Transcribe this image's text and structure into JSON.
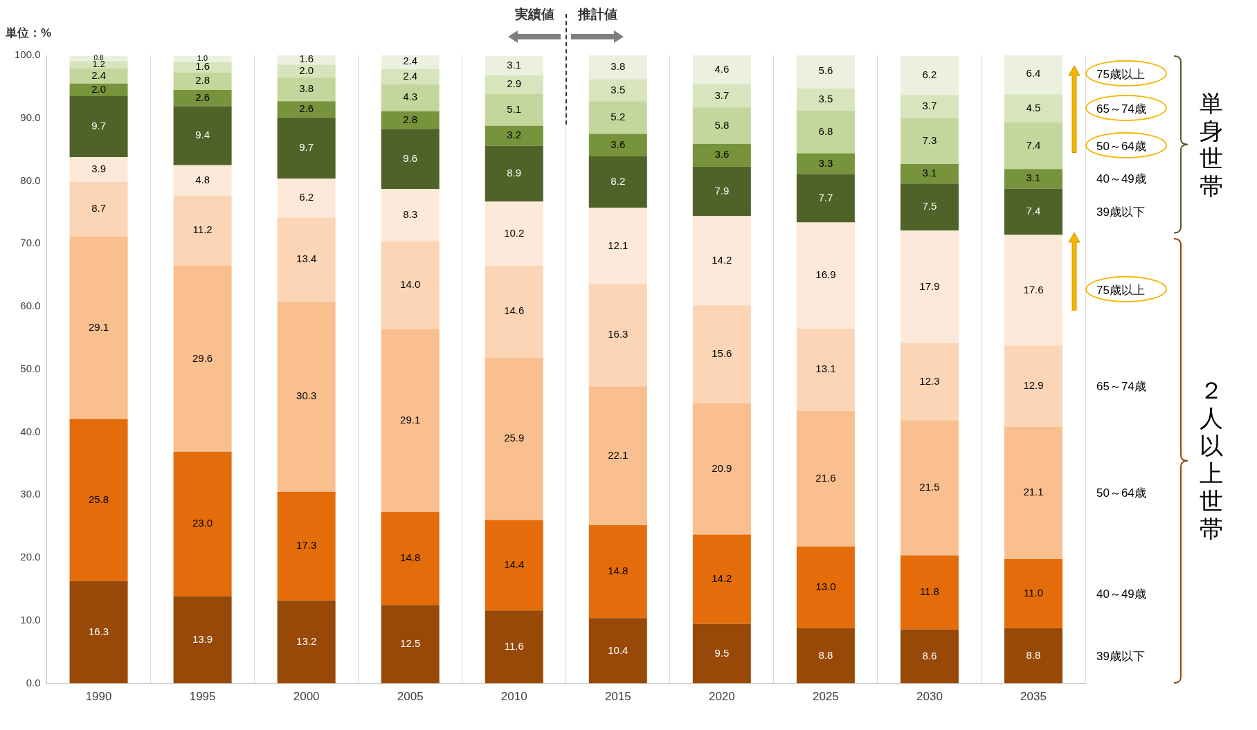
{
  "chart_data": {
    "type": "bar",
    "stacked": true,
    "ylabel": "単位：%",
    "categories": [
      "1990",
      "1995",
      "2000",
      "2005",
      "2010",
      "2015",
      "2020",
      "2025",
      "2030",
      "2035"
    ],
    "series": [
      {
        "name": "39歳以下",
        "color": "#984807",
        "values": [
          16.3,
          13.9,
          13.2,
          12.5,
          11.6,
          10.4,
          9.5,
          8.8,
          8.6,
          8.8
        ],
        "value_labels": [
          "16.3",
          "13.9",
          "13.2",
          "12.5",
          "11.6",
          "10.4",
          "9.5",
          "8.8",
          "8.6",
          "8.8"
        ]
      },
      {
        "name": "40～49歳",
        "color": "#e46c0a",
        "values": [
          25.8,
          23.0,
          17.3,
          14.8,
          14.4,
          14.8,
          14.2,
          13.0,
          11.8,
          11.0
        ],
        "value_labels": [
          "25.8",
          "23.0",
          "17.3",
          "14.8",
          "14.4",
          "14.8",
          "14.2",
          "13.0",
          "11.8",
          "11.0"
        ]
      },
      {
        "name": "50～64歳",
        "color": "#f9bf8f",
        "values": [
          29.1,
          29.6,
          30.3,
          29.1,
          25.9,
          22.1,
          20.9,
          21.6,
          21.5,
          21.1
        ],
        "value_labels": [
          "29.1",
          "29.6",
          "30.3",
          "29.1",
          "25.9",
          "22.1",
          "20.9",
          "21.6",
          "21.5",
          "21.1"
        ]
      },
      {
        "name": "65～74歳",
        "color": "#fbd5b5",
        "values": [
          8.7,
          11.2,
          13.4,
          14.0,
          14.6,
          16.3,
          15.6,
          13.1,
          12.3,
          12.9
        ],
        "value_labels": [
          "8.7",
          "11.2",
          "13.4",
          "14.0",
          "14.6",
          "16.3",
          "15.6",
          "13.1",
          "12.3",
          "12.9"
        ]
      },
      {
        "name": "75歳以上",
        "color": "#fde9d9",
        "values": [
          3.9,
          4.8,
          6.2,
          8.3,
          10.2,
          12.1,
          14.2,
          16.9,
          17.9,
          17.6
        ],
        "value_labels": [
          "3.9",
          "4.8",
          "6.2",
          "8.3",
          "10.2",
          "12.1",
          "14.2",
          "16.9",
          "17.9",
          "17.6"
        ]
      },
      {
        "name": "39歳以下",
        "color": "#4f6228",
        "values": [
          9.7,
          9.4,
          9.7,
          9.6,
          8.9,
          8.2,
          7.9,
          7.7,
          7.5,
          7.4
        ],
        "value_labels": [
          "9.7",
          "9.4",
          "9.7",
          "9.6",
          "8.9",
          "8.2",
          "7.9",
          "7.7",
          "7.5",
          "7.4"
        ]
      },
      {
        "name": "40～49歳",
        "color": "#77933c",
        "values": [
          2.0,
          2.6,
          2.6,
          2.8,
          3.2,
          3.6,
          3.6,
          3.3,
          3.1,
          3.1
        ],
        "value_labels": [
          "2.0",
          "2.6",
          "2.6",
          "2.8",
          "3.2",
          "3.6",
          "3.6",
          "3.3",
          "3.1",
          "3.1"
        ]
      },
      {
        "name": "50～64歳",
        "color": "#c3d69b",
        "values": [
          2.4,
          2.8,
          3.8,
          4.3,
          5.1,
          5.2,
          5.8,
          6.8,
          7.3,
          7.4
        ],
        "value_labels": [
          "2.4",
          "2.8",
          "3.8",
          "4.3",
          "5.1",
          "5.2",
          "5.8",
          "6.8",
          "7.3",
          "7.4"
        ]
      },
      {
        "name": "65～74歳",
        "color": "#d7e4bc",
        "values": [
          1.2,
          1.6,
          2.0,
          2.4,
          2.9,
          3.5,
          3.7,
          3.5,
          3.7,
          4.5
        ],
        "value_labels": [
          "1.2",
          "1.6",
          "2.0",
          "2.4",
          "2.9",
          "3.5",
          "3.7",
          "3.5",
          "3.7",
          "4.5"
        ]
      },
      {
        "name": "75歳以上",
        "color": "#ebf1de",
        "values": [
          0.8,
          1.0,
          1.6,
          2.4,
          3.1,
          3.8,
          4.6,
          5.6,
          6.2,
          6.4
        ],
        "value_labels": [
          "0.8",
          "1.0",
          "1.6",
          "2.4",
          "3.1",
          "3.8",
          "4.6",
          "5.6",
          "6.2",
          "6.4"
        ]
      }
    ],
    "ylim": [
      0,
      100
    ],
    "yticks": [
      {
        "value": 0,
        "label": "0.0"
      },
      {
        "value": 10,
        "label": "10.0"
      },
      {
        "value": 20,
        "label": "20.0"
      },
      {
        "value": 30,
        "label": "30.0"
      },
      {
        "value": 40,
        "label": "40.0"
      },
      {
        "value": 50,
        "label": "50.0"
      },
      {
        "value": 60,
        "label": "60.0"
      },
      {
        "value": 70,
        "label": "70.0"
      },
      {
        "value": 80,
        "label": "80.0"
      },
      {
        "value": 90,
        "label": "90.0"
      },
      {
        "value": 100,
        "label": "100.0"
      }
    ],
    "grid": "x",
    "legend": false,
    "annotations": [
      "実績値",
      "推計値",
      "単身世帯",
      "２人以上世帯"
    ]
  }
}
